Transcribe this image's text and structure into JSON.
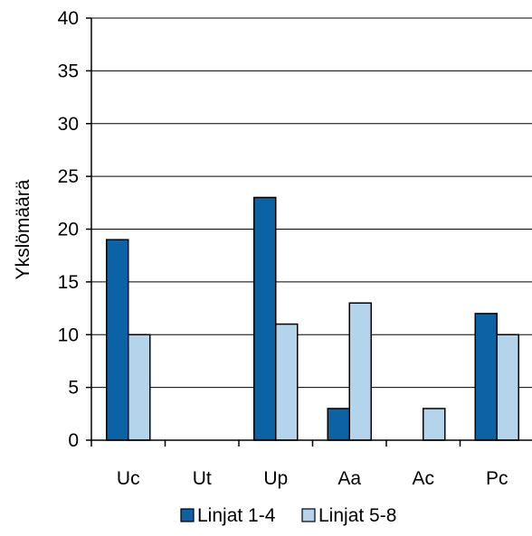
{
  "chart_data": {
    "type": "bar",
    "title": "",
    "xlabel": "",
    "ylabel": "Ykslömäärä",
    "ylim": [
      0,
      40
    ],
    "yticks": [
      0,
      5,
      10,
      15,
      20,
      25,
      30,
      35,
      40
    ],
    "categories": [
      "Uc",
      "Ut",
      "Up",
      "Aa",
      "Ac",
      "Pc"
    ],
    "series": [
      {
        "name": "Linjat 1-4",
        "color": "#0b63a6",
        "values": [
          19,
          0,
          23,
          3,
          0,
          12
        ]
      },
      {
        "name": "Linjat 5-8",
        "color": "#b4d4ec",
        "values": [
          10,
          0,
          11,
          13,
          3,
          10
        ]
      }
    ],
    "grid": true,
    "legend_position": "bottom"
  }
}
